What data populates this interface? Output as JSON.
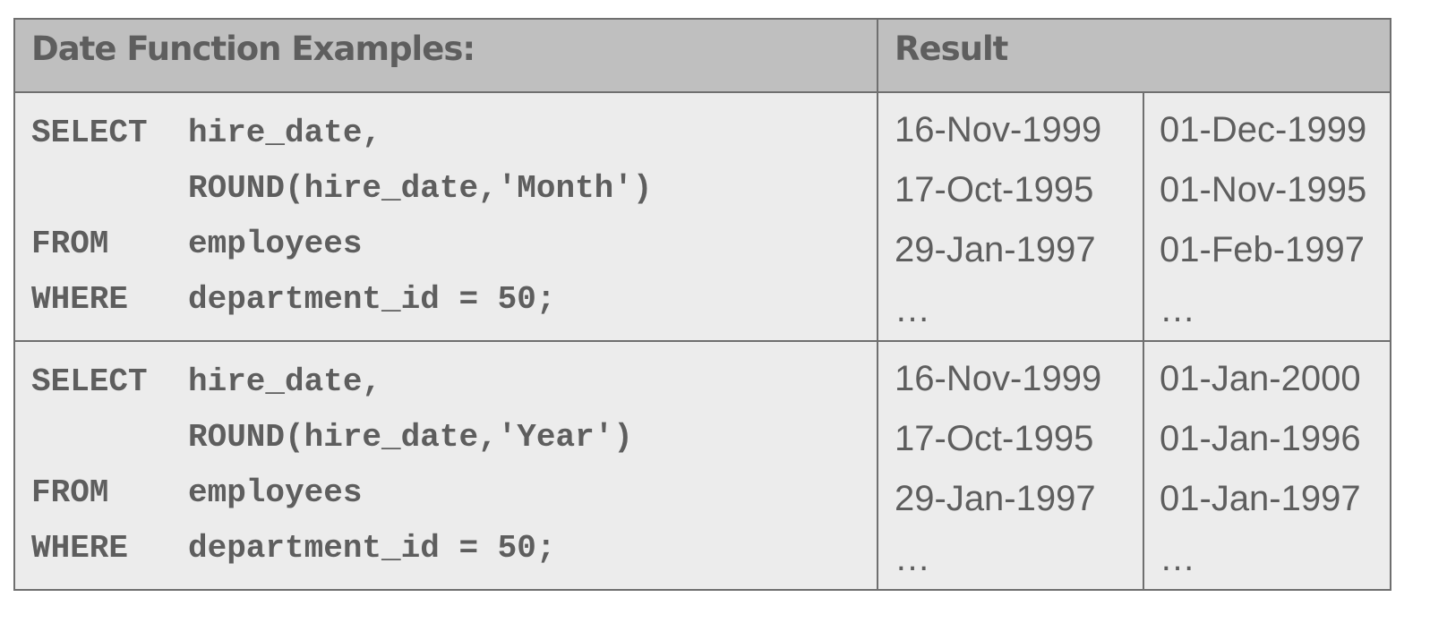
{
  "header": {
    "examples_label": "Date Function Examples:",
    "result_label": "Result"
  },
  "examples": [
    {
      "code": [
        {
          "keyword": "SELECT",
          "text": "hire_date,"
        },
        {
          "keyword": "",
          "text": "ROUND(hire_date,'Month')"
        },
        {
          "keyword": "FROM",
          "text": "employees"
        },
        {
          "keyword": "WHERE",
          "text": "department_id = 50;"
        }
      ],
      "inputs": [
        "16-Nov-1999",
        "17-Oct-1995",
        "29-Jan-1997",
        "…"
      ],
      "outputs": [
        "01-Dec-1999",
        "01-Nov-1995",
        "01-Feb-1997",
        "…"
      ]
    },
    {
      "code": [
        {
          "keyword": "SELECT",
          "text": "hire_date,"
        },
        {
          "keyword": "",
          "text": "ROUND(hire_date,'Year')"
        },
        {
          "keyword": "FROM",
          "text": "employees"
        },
        {
          "keyword": "WHERE",
          "text": "department_id = 50;"
        }
      ],
      "inputs": [
        "16-Nov-1999",
        "17-Oct-1995",
        "29-Jan-1997",
        "…"
      ],
      "outputs": [
        "01-Jan-2000",
        "01-Jan-1996",
        "01-Jan-1997",
        "…"
      ]
    }
  ]
}
